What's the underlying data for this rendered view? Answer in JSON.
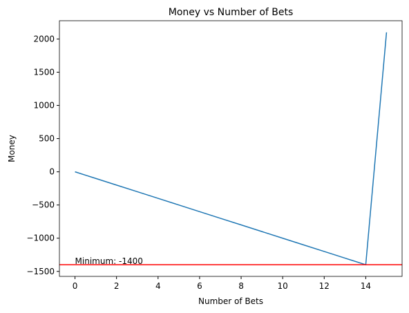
{
  "chart_data": {
    "type": "line",
    "title": "Money vs Number of Bets",
    "x_label": "Number of Bets",
    "y_label": "Money",
    "x": [
      0,
      1,
      2,
      3,
      4,
      5,
      6,
      7,
      8,
      9,
      10,
      11,
      12,
      13,
      14,
      15
    ],
    "series": [
      {
        "color": "#1f77b4",
        "values": [
          0,
          -100,
          -200,
          -300,
          -400,
          -500,
          -600,
          -700,
          -800,
          -900,
          -1000,
          -1100,
          -1200,
          -1300,
          -1400,
          2100
        ]
      }
    ],
    "hline": {
      "value": -1400,
      "color": "#ff0000",
      "label": "Minimum: -1400"
    },
    "xlim": [
      -0.75,
      15.75
    ],
    "ylim": [
      -1575,
      2275
    ],
    "xticks": [
      0,
      2,
      4,
      6,
      8,
      10,
      12,
      14
    ],
    "yticks": [
      {
        "value": -1500,
        "label": "−1500"
      },
      {
        "value": -1000,
        "label": "−1000"
      },
      {
        "value": -500,
        "label": "−500"
      },
      0,
      500,
      1000,
      1500,
      2000
    ],
    "grid": false
  }
}
